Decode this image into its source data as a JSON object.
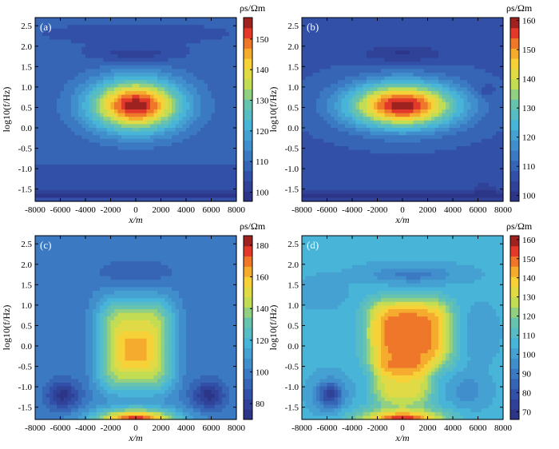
{
  "chart_data": [
    {
      "type": "heatmap",
      "panel_label": "(a)",
      "xlabel": "x/m",
      "ylabel": "log10(f/Hz)",
      "xlim": [
        -8000,
        8000
      ],
      "ylim": [
        -1.8,
        2.7
      ],
      "x_ticks": [
        -8000,
        -6000,
        -4000,
        -2000,
        0,
        2000,
        4000,
        6000,
        8000
      ],
      "y_ticks": [
        -1.5,
        -1.0,
        -0.5,
        0.0,
        0.5,
        1.0,
        1.5,
        2.0,
        2.5
      ],
      "x_tick_labels": [
        "-8000",
        "-6000",
        "-4000",
        "-2000",
        "0",
        "2000",
        "4000",
        "6000",
        "8000"
      ],
      "y_tick_labels": [
        "-1.5",
        "-1.0",
        "-0.5",
        "0.0",
        "0.5",
        "1.0",
        "1.5",
        "2.0",
        "2.5"
      ],
      "colorbar": {
        "title": "ρs/Ωm",
        "range": [
          97,
          157
        ],
        "ticks": [
          100,
          110,
          120,
          130,
          140,
          150
        ],
        "tick_labels": [
          "100",
          "110",
          "120",
          "130",
          "140",
          "150"
        ]
      },
      "field": {
        "background": 108,
        "features": [
          {
            "shape": "blob",
            "x": 0,
            "y": 0.55,
            "sx": 3600,
            "sy": 0.62,
            "amp": 48,
            "power": 2
          },
          {
            "shape": "blob",
            "x": 0,
            "y": 1.8,
            "sx": 3200,
            "sy": 0.18,
            "amp": -7,
            "power": 2
          },
          {
            "shape": "blob",
            "x": 0,
            "y": 2.3,
            "sx": 9000,
            "sy": 0.3,
            "amp": -2,
            "power": 2
          },
          {
            "shape": "band",
            "y": -1.65,
            "sy": 0.12,
            "amp": -9
          },
          {
            "shape": "band",
            "y": -1.15,
            "sy": 0.25,
            "amp": -3
          }
        ]
      }
    },
    {
      "type": "heatmap",
      "panel_label": "(b)",
      "xlabel": "x/m",
      "ylabel": "log10(f/Hz)",
      "xlim": [
        -8000,
        8000
      ],
      "ylim": [
        -1.8,
        2.7
      ],
      "x_ticks": [
        -8000,
        -6000,
        -4000,
        -2000,
        0,
        2000,
        4000,
        6000,
        8000
      ],
      "y_ticks": [
        -1.5,
        -1.0,
        -0.5,
        0.0,
        0.5,
        1.0,
        1.5,
        2.0,
        2.5
      ],
      "x_tick_labels": [
        "-8000",
        "-6000",
        "-4000",
        "-2000",
        "0",
        "2000",
        "4000",
        "6000",
        "8000"
      ],
      "y_tick_labels": [
        "-1.5",
        "-1.0",
        "-0.5",
        "0.0",
        "0.5",
        "1.0",
        "1.5",
        "2.0",
        "2.5"
      ],
      "colorbar": {
        "title": "ρs/Ωm",
        "range": [
          98,
          161
        ],
        "ticks": [
          100,
          110,
          120,
          130,
          140,
          150,
          160
        ],
        "tick_labels": [
          "100",
          "110",
          "120",
          "130",
          "140",
          "150",
          "160"
        ]
      },
      "field": {
        "background": 108,
        "features": [
          {
            "shape": "blob",
            "x": 0,
            "y": 0.55,
            "sx": 4300,
            "sy": 0.55,
            "amp": 52,
            "power": 2
          },
          {
            "shape": "blob",
            "x": 0,
            "y": 1.8,
            "sx": 3300,
            "sy": 0.2,
            "amp": -7,
            "power": 2
          },
          {
            "shape": "blob",
            "x": 0,
            "y": 2.3,
            "sx": 9000,
            "sy": 0.3,
            "amp": -2,
            "power": 2
          },
          {
            "shape": "blob",
            "x": 6500,
            "y": 0.9,
            "sx": 800,
            "sy": 0.15,
            "amp": -4,
            "power": 2
          },
          {
            "shape": "blob",
            "x": 6500,
            "y": -1.5,
            "sx": 800,
            "sy": 0.15,
            "amp": -4,
            "power": 2
          },
          {
            "shape": "band",
            "y": -1.65,
            "sy": 0.12,
            "amp": -8
          },
          {
            "shape": "band",
            "y": -1.15,
            "sy": 0.25,
            "amp": -3
          }
        ]
      }
    },
    {
      "type": "heatmap",
      "panel_label": "(c)",
      "xlabel": "x/m",
      "ylabel": "log10(f/Hz)",
      "xlim": [
        -8000,
        8000
      ],
      "ylim": [
        -1.8,
        2.7
      ],
      "x_ticks": [
        -8000,
        -6000,
        -4000,
        -2000,
        0,
        2000,
        4000,
        6000,
        8000
      ],
      "y_ticks": [
        -1.5,
        -1.0,
        -0.5,
        0.0,
        0.5,
        1.0,
        1.5,
        2.0,
        2.5
      ],
      "x_tick_labels": [
        "-8000",
        "-6000",
        "-4000",
        "-2000",
        "0",
        "2000",
        "4000",
        "6000",
        "8000"
      ],
      "y_tick_labels": [
        "-1.5",
        "-1.0",
        "-0.5",
        "0.0",
        "0.5",
        "1.0",
        "1.5",
        "2.0",
        "2.5"
      ],
      "colorbar": {
        "title": "ρs/Ωm",
        "range": [
          70,
          186
        ],
        "ticks": [
          80,
          100,
          120,
          140,
          160,
          180
        ],
        "tick_labels": [
          "80",
          "100",
          "120",
          "140",
          "160",
          "180"
        ]
      },
      "field": {
        "background": 100,
        "features": [
          {
            "shape": "rect",
            "x": 0,
            "y": 0.0,
            "sx": 3000,
            "sy": 1.15,
            "amp": 52,
            "power": 4
          },
          {
            "shape": "rect",
            "x": 0,
            "y": -0.1,
            "sx": 1400,
            "sy": 0.45,
            "amp": 10,
            "power": 4
          },
          {
            "shape": "blob",
            "x": 0,
            "y": -1.85,
            "sx": 3300,
            "sy": 0.3,
            "amp": 82,
            "power": 2
          },
          {
            "shape": "blob",
            "x": 0,
            "y": 1.8,
            "sx": 3000,
            "sy": 0.25,
            "amp": -10,
            "power": 2
          },
          {
            "shape": "blob",
            "x": -5800,
            "y": -1.2,
            "sx": 1300,
            "sy": 0.35,
            "amp": -26,
            "power": 2
          },
          {
            "shape": "blob",
            "x": 5800,
            "y": -1.2,
            "sx": 1300,
            "sy": 0.35,
            "amp": -26,
            "power": 2
          },
          {
            "shape": "band",
            "y": 2.3,
            "sy": 0.3,
            "amp": -3
          }
        ]
      }
    },
    {
      "type": "heatmap",
      "panel_label": "(d)",
      "xlabel": "x/m",
      "ylabel": "log10(f/Hz)",
      "xlim": [
        -8000,
        8000
      ],
      "ylim": [
        -1.8,
        2.7
      ],
      "x_ticks": [
        -8000,
        -6000,
        -4000,
        -2000,
        0,
        2000,
        4000,
        6000,
        8000
      ],
      "y_ticks": [
        -1.5,
        -1.0,
        -0.5,
        0.0,
        0.5,
        1.0,
        1.5,
        2.0,
        2.5
      ],
      "x_tick_labels": [
        "-8000",
        "-6000",
        "-4000",
        "-2000",
        "0",
        "2000",
        "4000",
        "6000",
        "8000"
      ],
      "y_tick_labels": [
        "-1.5",
        "-1.0",
        "-0.5",
        "0.0",
        "0.5",
        "1.0",
        "1.5",
        "2.0",
        "2.5"
      ],
      "colorbar": {
        "title": "ρs/Ωm",
        "range": [
          66,
          162
        ],
        "ticks": [
          70,
          80,
          90,
          100,
          110,
          120,
          130,
          140,
          150,
          160
        ],
        "tick_labels": [
          "70",
          "80",
          "90",
          "100",
          "110",
          "120",
          "130",
          "140",
          "150",
          "160"
        ]
      },
      "field": {
        "background": 104,
        "features": [
          {
            "shape": "rect",
            "x": 500,
            "y": 0.3,
            "sx": 3400,
            "sy": 0.85,
            "amp": 46,
            "power": 4
          },
          {
            "shape": "rect",
            "x": 0,
            "y": -0.9,
            "sx": 2400,
            "sy": 0.55,
            "amp": 30,
            "power": 4
          },
          {
            "shape": "blob",
            "x": 0,
            "y": -1.85,
            "sx": 3300,
            "sy": 0.3,
            "amp": 55,
            "power": 2
          },
          {
            "shape": "blob",
            "x": 800,
            "y": 1.75,
            "sx": 3300,
            "sy": 0.2,
            "amp": -14,
            "power": 2
          },
          {
            "shape": "blob",
            "x": -5800,
            "y": -1.2,
            "sx": 1100,
            "sy": 0.35,
            "amp": -30,
            "power": 2
          },
          {
            "shape": "blob",
            "x": 5200,
            "y": -1.1,
            "sx": 1300,
            "sy": 0.4,
            "amp": -10,
            "power": 2
          },
          {
            "shape": "blob",
            "x": -6500,
            "y": 1.3,
            "sx": 1500,
            "sy": 0.3,
            "amp": -6,
            "power": 2
          },
          {
            "shape": "blob",
            "x": 6000,
            "y": 0.3,
            "sx": 1400,
            "sy": 0.6,
            "amp": -4,
            "power": 2
          }
        ]
      }
    }
  ]
}
